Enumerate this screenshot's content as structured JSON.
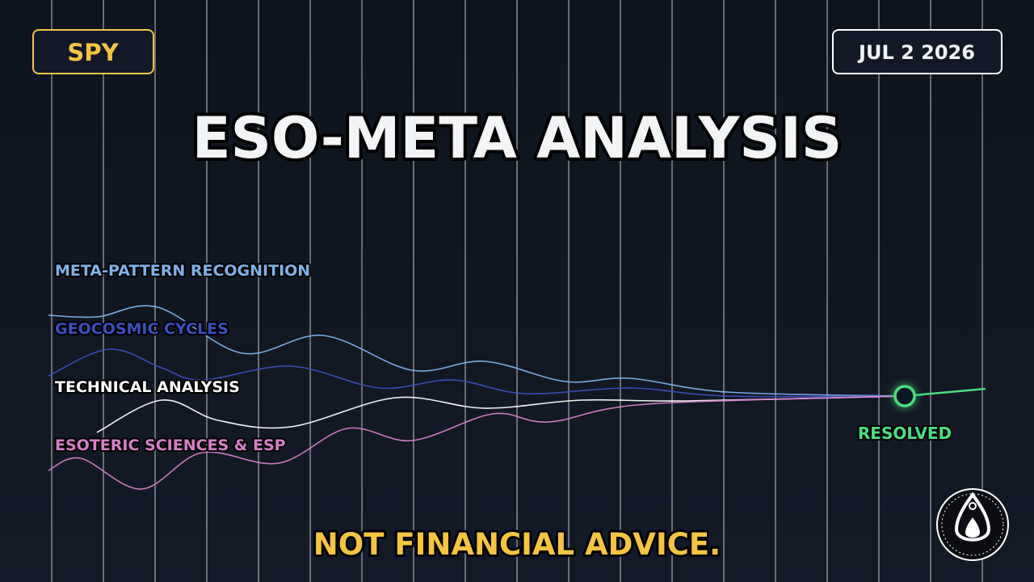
{
  "header": {
    "ticker": "SPY",
    "date": "JUL 2 2026",
    "title": "ESO-META ANALYSIS"
  },
  "streams": [
    {
      "label": "META-PATTERN RECOGNITION"
    },
    {
      "label": "GEOCOSMIC CYCLES"
    },
    {
      "label": "TECHNICAL ANALYSIS"
    },
    {
      "label": "ESOTERIC SCIENCES & ESP"
    }
  ],
  "resolution": {
    "label": "RESOLVED"
  },
  "footer": {
    "disclaimer": "NOT FINANCIAL ADVICE."
  }
}
